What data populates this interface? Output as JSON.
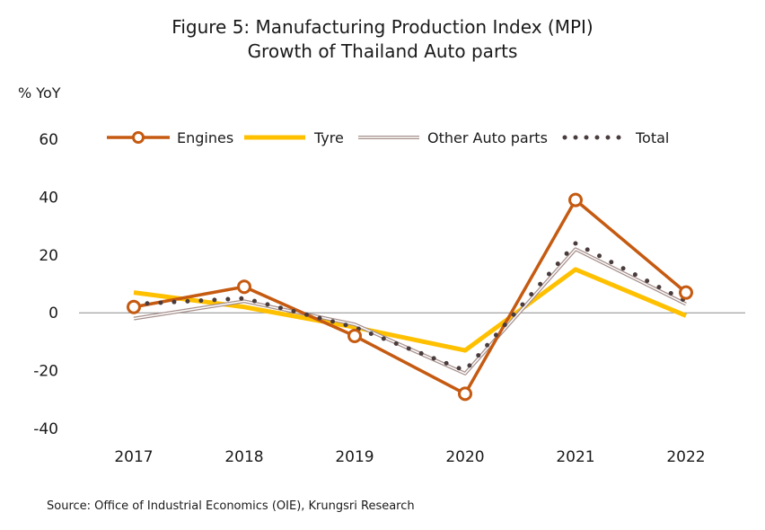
{
  "chart_data": {
    "type": "line",
    "title": "Figure 5: Manufacturing Production Index (MPI)",
    "subtitle": "Growth of Thailand Auto parts",
    "ylabel": "% YoY",
    "categories": [
      "2017",
      "2018",
      "2019",
      "2020",
      "2021",
      "2022"
    ],
    "ylim": [
      -40,
      60
    ],
    "yticks": [
      60,
      40,
      20,
      0,
      -20,
      -40
    ],
    "grid": false,
    "legend_position": "top",
    "series": [
      {
        "name": "Engines",
        "values": [
          2,
          9,
          -8,
          -28,
          39,
          7
        ],
        "color": "#C55A11",
        "style": "line-hollow-markers"
      },
      {
        "name": "Tyre",
        "values": [
          7,
          2,
          -5,
          -13,
          15,
          -1
        ],
        "color": "#FFC000",
        "style": "thick-line"
      },
      {
        "name": "Other Auto parts",
        "values": [
          -2,
          4,
          -4,
          -21,
          22,
          3
        ],
        "color": "#A6908C",
        "style": "double-line"
      },
      {
        "name": "Total",
        "values": [
          3,
          5,
          -5,
          -20,
          24,
          4
        ],
        "color": "#4A3C3C",
        "style": "dotted"
      }
    ],
    "source": "Source: Office of Industrial Economics (OIE), Krungsri Research"
  }
}
